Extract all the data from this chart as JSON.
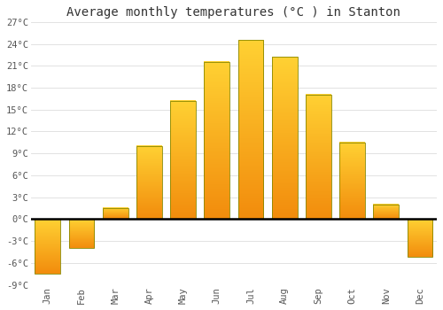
{
  "months": [
    "Jan",
    "Feb",
    "Mar",
    "Apr",
    "May",
    "Jun",
    "Jul",
    "Aug",
    "Sep",
    "Oct",
    "Nov",
    "Dec"
  ],
  "values": [
    -7.5,
    -4.0,
    1.5,
    10.0,
    16.2,
    21.5,
    24.5,
    22.2,
    17.0,
    10.5,
    2.0,
    -5.2
  ],
  "bar_color": "#FFA500",
  "bar_color_bright": "#FFD050",
  "bar_edge_color": "#888800",
  "title": "Average monthly temperatures (°C ) in Stanton",
  "title_fontsize": 10,
  "ylim": [
    -9,
    27
  ],
  "yticks": [
    -9,
    -6,
    -3,
    0,
    3,
    6,
    9,
    12,
    15,
    18,
    21,
    24,
    27
  ],
  "ytick_labels": [
    "-9°C",
    "-6°C",
    "-3°C",
    "0°C",
    "3°C",
    "6°C",
    "9°C",
    "12°C",
    "15°C",
    "18°C",
    "21°C",
    "24°C",
    "27°C"
  ],
  "background_color": "#ffffff",
  "grid_color": "#dddddd",
  "zero_line_color": "#000000",
  "tick_color": "#555555"
}
